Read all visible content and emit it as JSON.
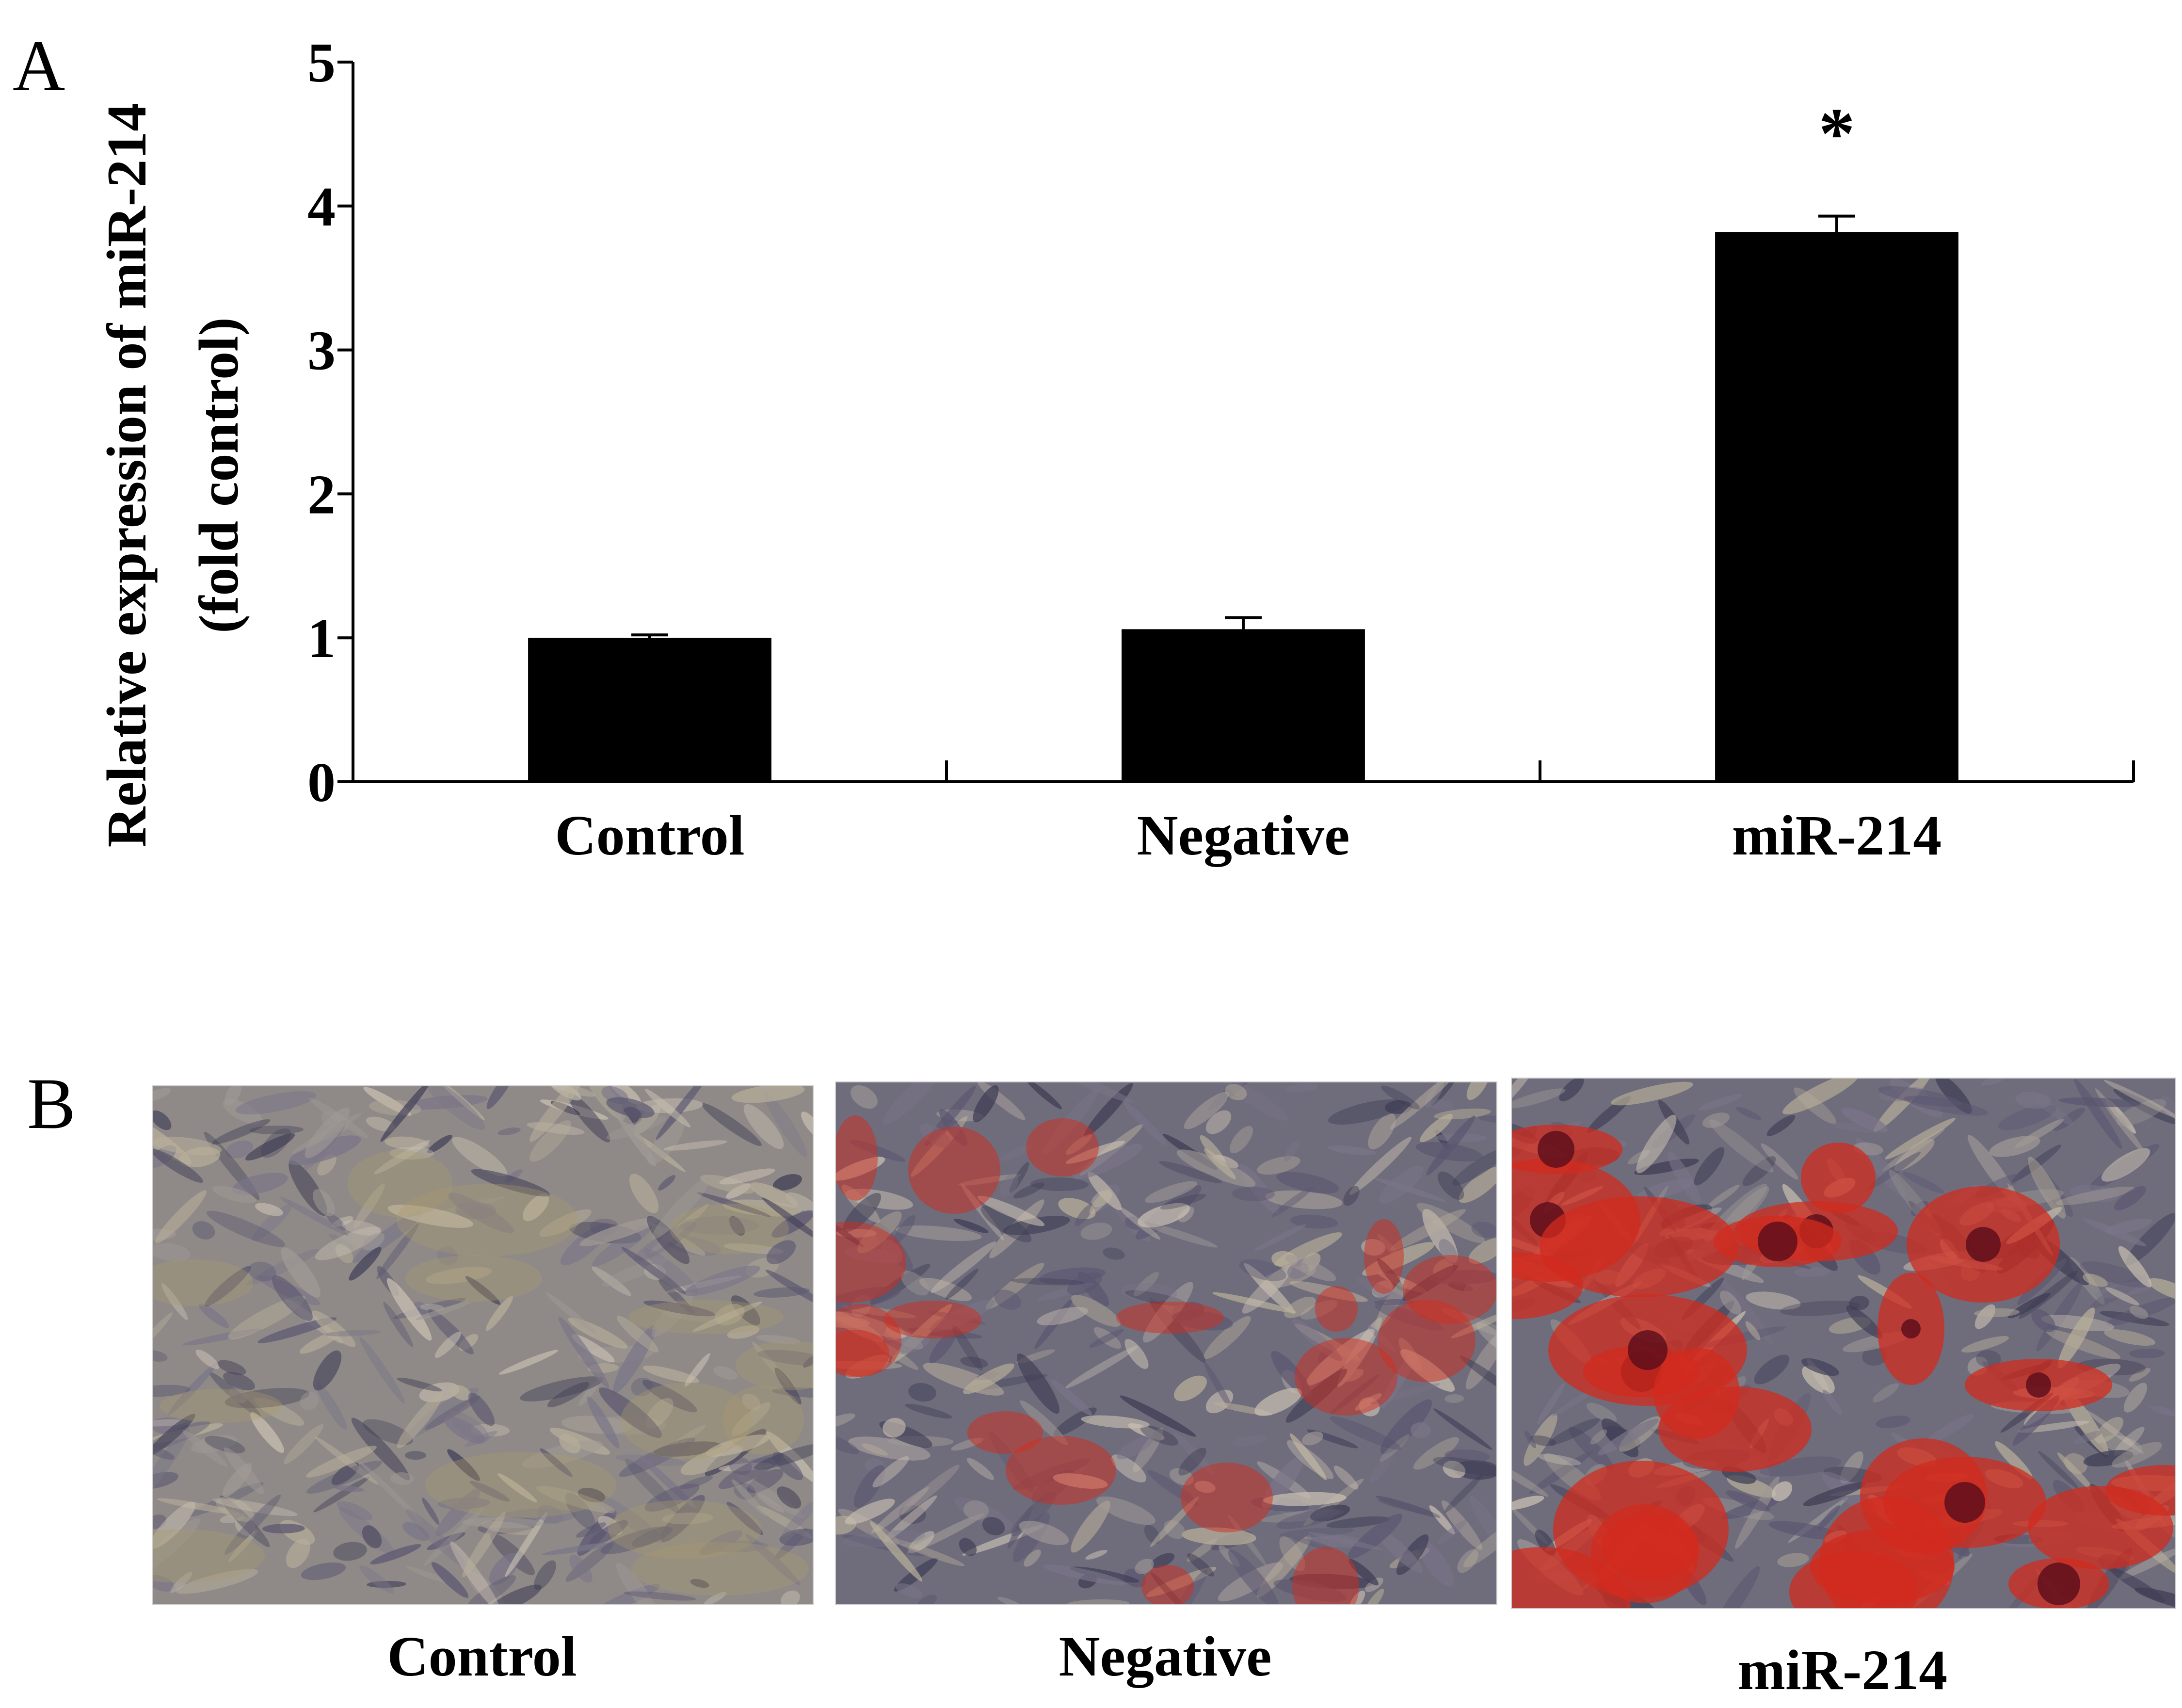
{
  "panel_a": {
    "letter": "A"
  },
  "panel_b": {
    "letter": "B",
    "images": [
      {
        "caption": "Control",
        "stain": "none"
      },
      {
        "caption": "Negative",
        "stain": "moderate red"
      },
      {
        "caption": "miR-214",
        "stain": "strong red"
      }
    ]
  },
  "colors": {
    "bar": "#000000",
    "axis": "#000000",
    "stain_red": "#d22b1e",
    "cell_grey": "#6e6a78"
  },
  "chart_data": {
    "type": "bar",
    "categories": [
      "Control",
      "Negative",
      "miR-214"
    ],
    "values": [
      1.0,
      1.06,
      3.82
    ],
    "error": [
      0.02,
      0.08,
      0.11
    ],
    "significance": [
      "",
      "",
      "*"
    ],
    "ylabel_lines": [
      "Relative expression of miR-214",
      "(fold control)"
    ],
    "yticks": [
      "0",
      "1",
      "2",
      "3",
      "4",
      "5"
    ],
    "ylim": [
      0,
      5
    ],
    "grid": false
  }
}
